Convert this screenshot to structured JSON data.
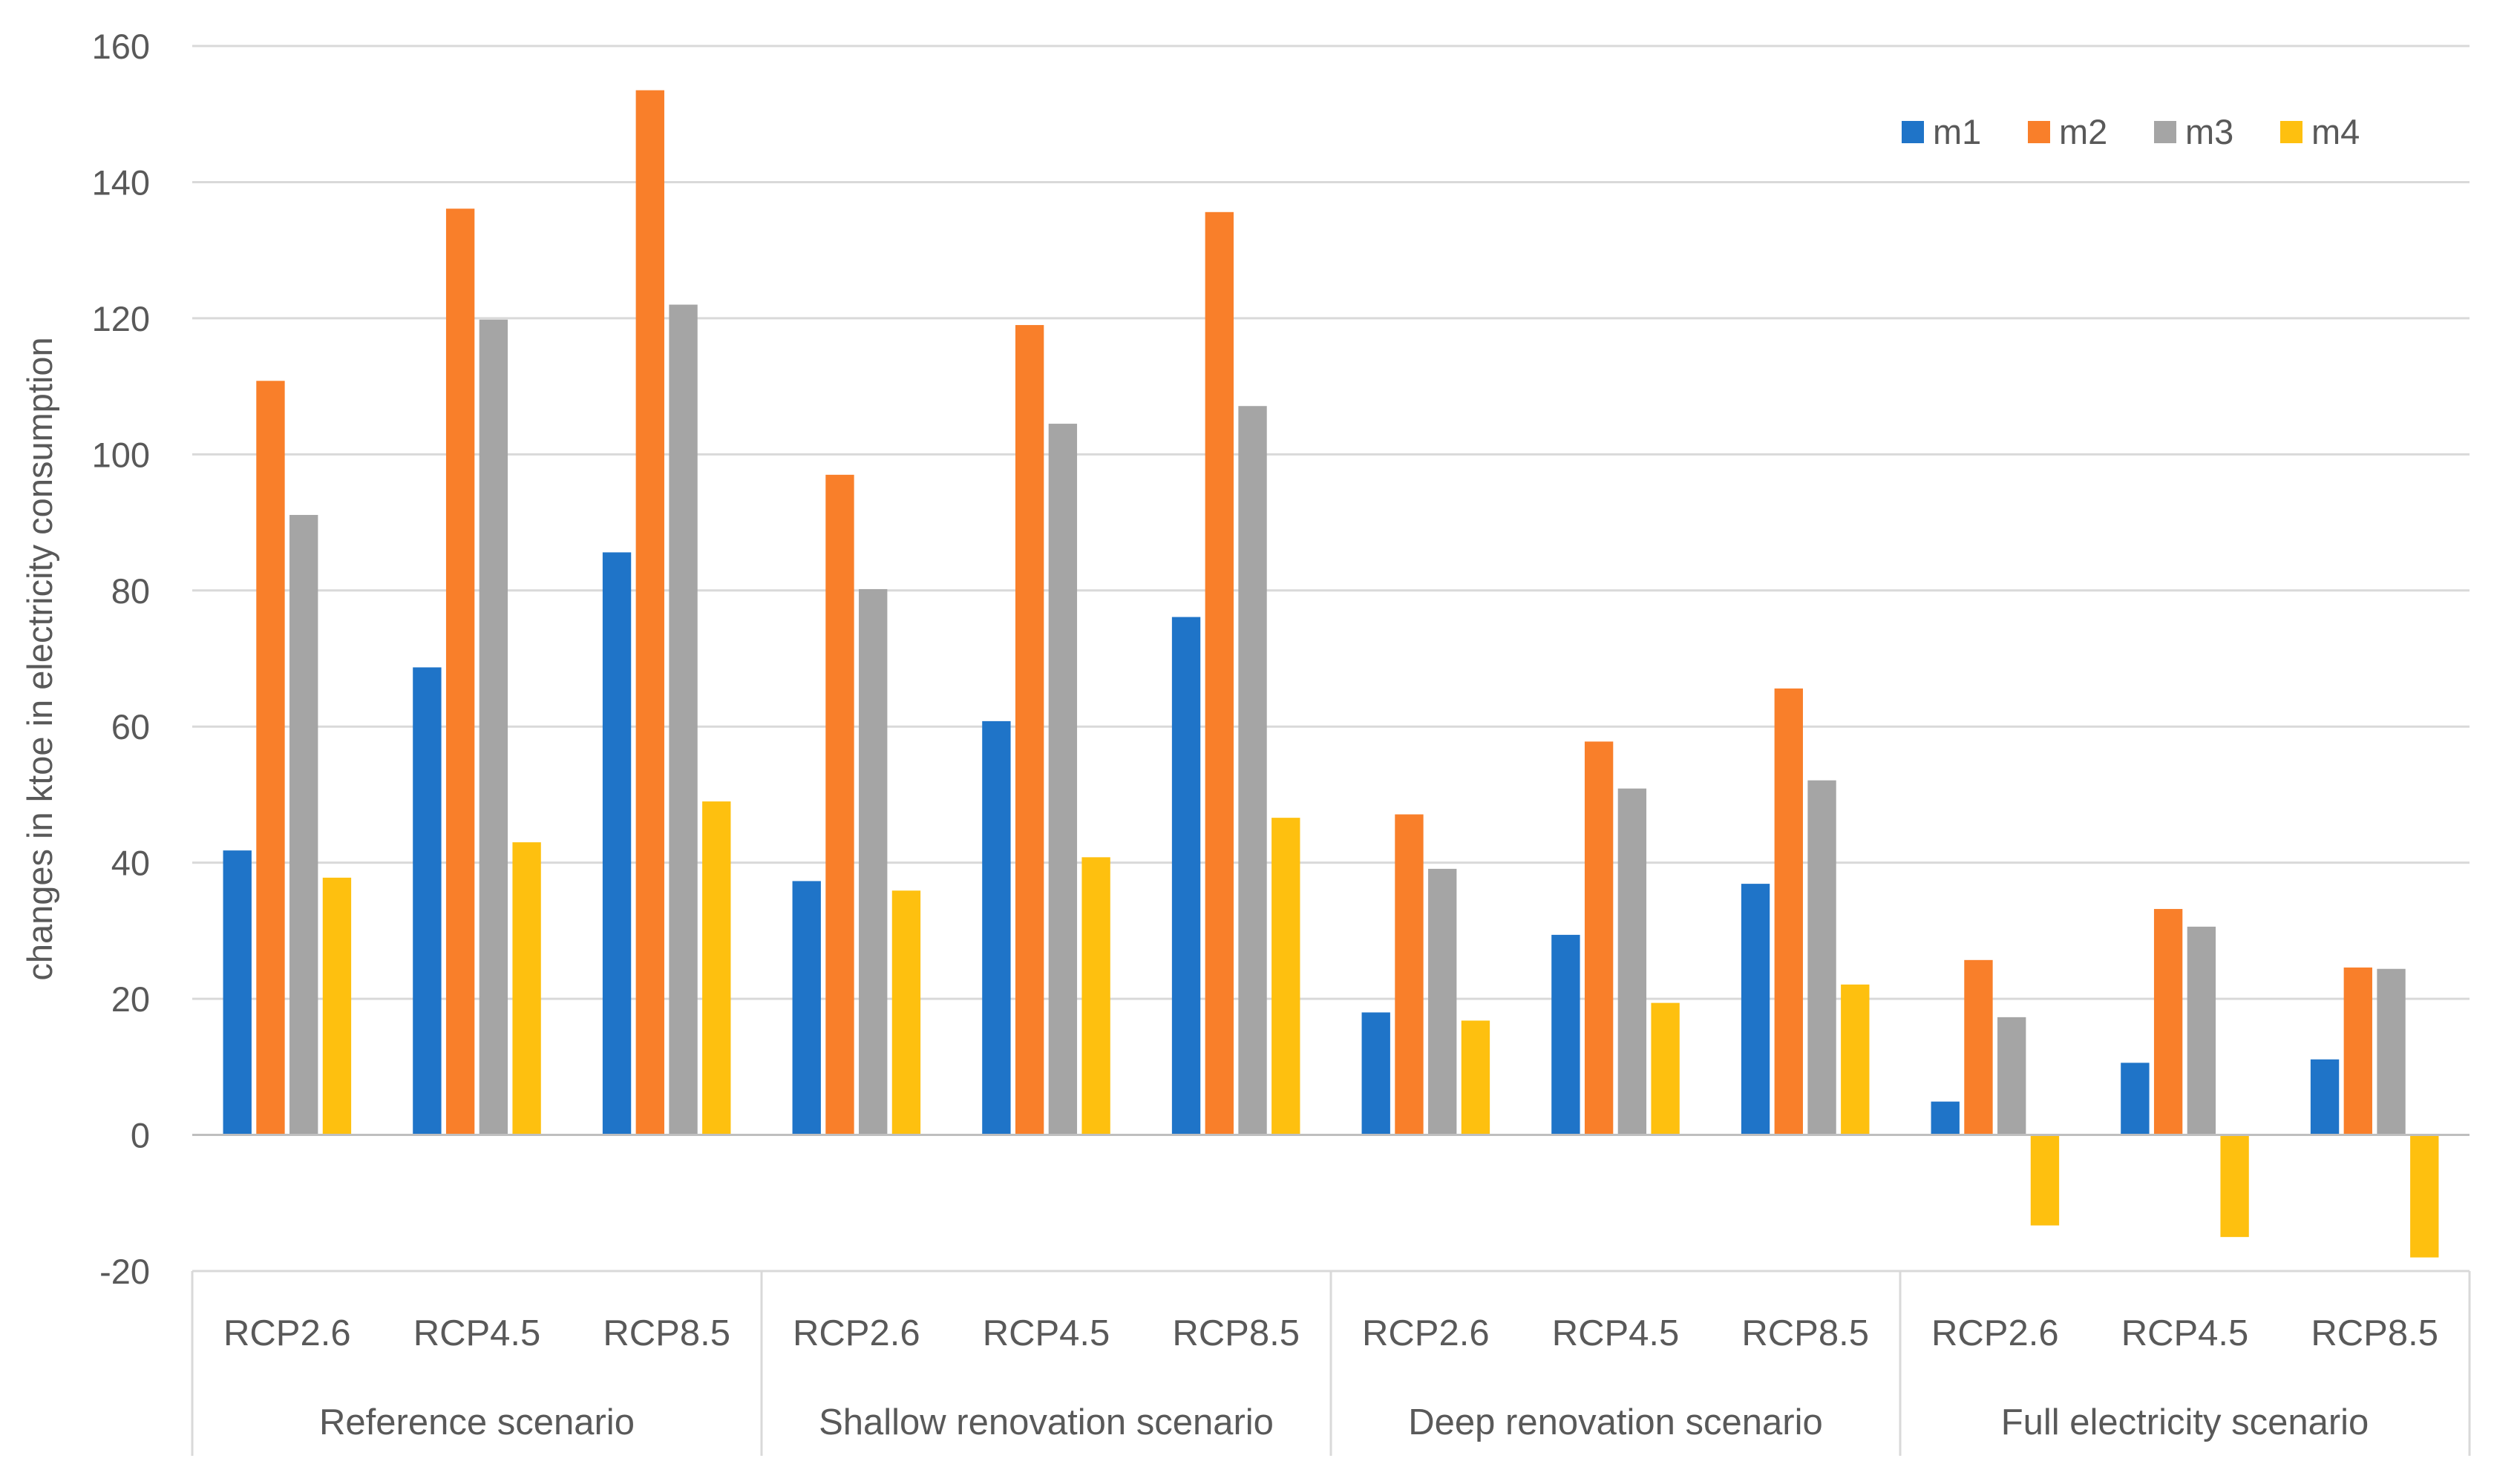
{
  "chart_data": {
    "type": "bar",
    "title": "",
    "ylabel": "changes in ktoe in electricity consumption",
    "xlabel": "",
    "ylim": [
      -20,
      160
    ],
    "yticks": [
      -20,
      0,
      20,
      40,
      60,
      80,
      100,
      120,
      140,
      160
    ],
    "grid": true,
    "legend_position": "top-right",
    "groups": [
      {
        "name": "Reference scenario",
        "categories": [
          "RCP2.6",
          "RCP4.5",
          "RCP8.5"
        ]
      },
      {
        "name": "Shallow renovation scenario",
        "categories": [
          "RCP2.6",
          "RCP4.5",
          "RCP8.5"
        ]
      },
      {
        "name": "Deep renovation scenario",
        "categories": [
          "RCP2.6",
          "RCP4.5",
          "RCP8.5"
        ]
      },
      {
        "name": "Full electricity scenario",
        "categories": [
          "RCP2.6",
          "RCP4.5",
          "RCP8.5"
        ]
      }
    ],
    "series": [
      {
        "name": "m1",
        "color": "#1F74C8",
        "values": [
          41.8,
          68.7,
          85.6,
          37.3,
          60.8,
          76.1,
          18.0,
          29.4,
          36.9,
          4.9,
          10.6,
          11.1
        ]
      },
      {
        "name": "m2",
        "color": "#F97F2A",
        "values": [
          110.8,
          136.1,
          153.5,
          97.0,
          119.0,
          135.6,
          47.1,
          57.8,
          65.6,
          25.7,
          33.2,
          24.6
        ]
      },
      {
        "name": "m3",
        "color": "#A5A5A5",
        "values": [
          91.1,
          119.8,
          122.0,
          80.2,
          104.5,
          107.1,
          39.1,
          50.9,
          52.1,
          17.3,
          30.6,
          24.4
        ]
      },
      {
        "name": "m4",
        "color": "#FEC00F",
        "values": [
          37.8,
          43.0,
          49.0,
          35.9,
          40.8,
          46.6,
          16.8,
          19.4,
          22.1,
          -13.3,
          -15.0,
          -18.0
        ]
      }
    ]
  }
}
